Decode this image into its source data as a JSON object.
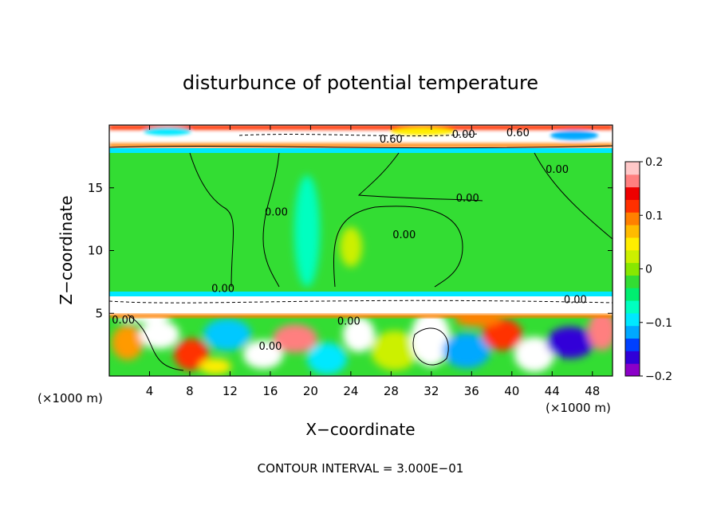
{
  "chart_data": {
    "type": "heatmap",
    "title": "disturbunce of potential temperature",
    "xlabel": "X−coordinate",
    "ylabel": "Z−coordinate",
    "x_unit_left": "(×1000 m)",
    "x_unit_right": "(×1000 m)",
    "footer": "CONTOUR INTERVAL = 3.000E−01",
    "xlim": [
      0,
      50
    ],
    "ylim": [
      0,
      20
    ],
    "x_ticks": [
      4,
      8,
      12,
      16,
      20,
      24,
      28,
      32,
      36,
      40,
      44,
      48
    ],
    "y_ticks": [
      5,
      10,
      15
    ],
    "colorbar": {
      "range": [
        -0.2,
        0.2
      ],
      "tick_values": [
        0.2,
        0.1,
        0,
        -0.1,
        -0.2
      ],
      "tick_labels": [
        "0.2",
        "0.1",
        "0",
        "−0.1",
        "−0.2"
      ],
      "colors": [
        "#8b00c8",
        "#3000d8",
        "#0040ff",
        "#00a8ff",
        "#00e8ff",
        "#00ffc0",
        "#00ee70",
        "#33dd33",
        "#88e800",
        "#ccf000",
        "#ffee00",
        "#ffbb00",
        "#ff8000",
        "#ff3000",
        "#ee0000",
        "#ff7f7f",
        "#ffc8c8"
      ]
    },
    "contour_labels": [
      {
        "text": "0.00",
        "x": 11.3,
        "z": 6.7
      },
      {
        "text": "0.00",
        "x": 16.6,
        "z": 12.8
      },
      {
        "text": "0.00",
        "x": 29.3,
        "z": 11
      },
      {
        "text": "0.00",
        "x": 35.6,
        "z": 13.9
      },
      {
        "text": "0.00",
        "x": 44.5,
        "z": 16.2
      },
      {
        "text": "0.00",
        "x": 1.4,
        "z": 4.2
      },
      {
        "text": "0.00",
        "x": 23.8,
        "z": 4.1
      },
      {
        "text": "0.00",
        "x": 16,
        "z": 2.1
      },
      {
        "text": "0.00",
        "x": 46.3,
        "z": 5.8
      },
      {
        "text": "0.60",
        "x": 28,
        "z": 18.6
      },
      {
        "text": "0.60",
        "x": 40.6,
        "z": 19.1
      },
      {
        "text": "0.00",
        "x": 35.2,
        "z": 19
      }
    ]
  }
}
